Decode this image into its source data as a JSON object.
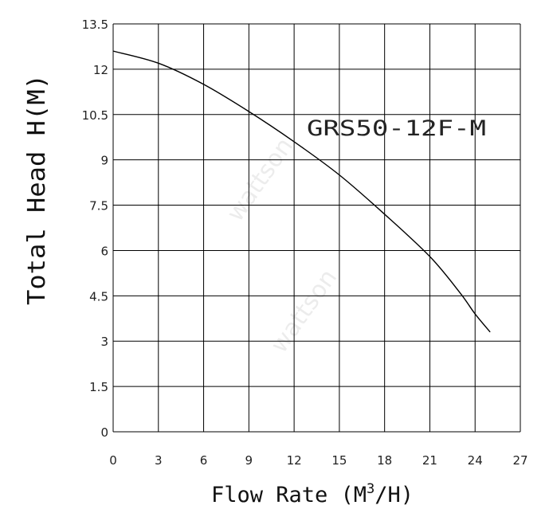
{
  "chart_data": {
    "type": "line",
    "title": "",
    "annotation": "GRS50-12F-M",
    "xlabel": "Flow Rate (M3/H)",
    "xlabel_parts": {
      "main": "Flow Rate (M",
      "sup": "3",
      "tail": "/H)"
    },
    "ylabel": "Total Head H(M)",
    "xlim": [
      0,
      27
    ],
    "ylim": [
      0,
      13.5
    ],
    "x_ticks": [
      "0",
      "3",
      "6",
      "9",
      "12",
      "15",
      "18",
      "21",
      "24",
      "27"
    ],
    "y_ticks": [
      "0",
      "1.5",
      "3",
      "4.5",
      "6",
      "7.5",
      "9",
      "10.5",
      "12",
      "13.5"
    ],
    "grid": true,
    "watermark": "wattson",
    "line_color": "#000000",
    "series": [
      {
        "x": [
          0,
          3,
          6,
          9,
          12,
          15,
          18,
          21,
          23,
          24,
          25
        ],
        "y": [
          12.6,
          12.2,
          11.5,
          10.6,
          9.6,
          8.5,
          7.2,
          5.8,
          4.6,
          3.9,
          3.3
        ]
      }
    ]
  }
}
